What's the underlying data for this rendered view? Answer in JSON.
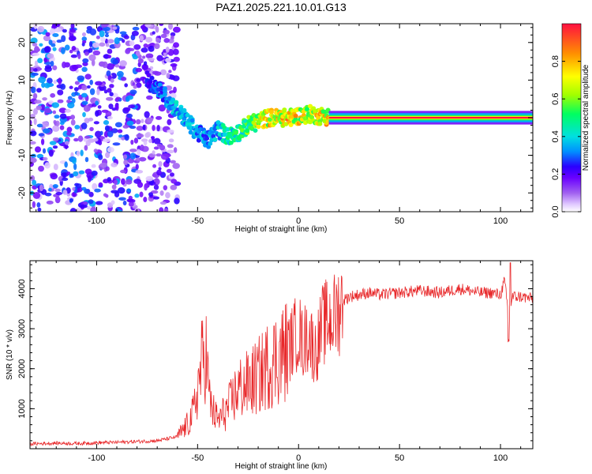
{
  "figure": {
    "title": "PAZ1.2025.221.10.01.G13"
  },
  "colorbar": {
    "label": "Normalized spectral amplitude",
    "ticks": [
      "0.0",
      "0.2",
      "0.4",
      "0.6",
      "0.8"
    ],
    "tick_values": [
      0.0,
      0.2,
      0.4,
      0.6,
      0.8
    ],
    "range": [
      0,
      1
    ],
    "colors": [
      "#ffffff",
      "#e0c8ff",
      "#a060f0",
      "#6a00ff",
      "#2a00ff",
      "#0090ff",
      "#00e0e0",
      "#00ff60",
      "#a0ff00",
      "#ffff00",
      "#ff9000",
      "#ff1040"
    ]
  },
  "chart_data": [
    {
      "type": "heatmap",
      "title": "",
      "xlabel": "Height of straight line (km)",
      "ylabel": "Frequency (Hz)",
      "xlim": [
        -133,
        116
      ],
      "ylim": [
        -25,
        25
      ],
      "xticks": [
        -100,
        -50,
        0,
        50,
        100
      ],
      "yticks": [
        -20,
        -10,
        0,
        10,
        20
      ],
      "ridge": {
        "x": [
          -75,
          -70,
          -65,
          -60,
          -55,
          -50,
          -45,
          -40,
          -35,
          -30,
          -25,
          -20,
          -15,
          -10,
          -5,
          0,
          5,
          10,
          20,
          30,
          50,
          80,
          100,
          116
        ],
        "y": [
          10,
          8,
          5,
          2,
          -1,
          -4,
          -6,
          -3,
          -5,
          -4,
          -2,
          -1,
          0,
          0,
          0,
          0.5,
          1,
          0.5,
          0,
          0,
          0,
          0,
          0,
          0
        ],
        "amplitude": [
          0.3,
          0.35,
          0.4,
          0.45,
          0.45,
          0.4,
          0.4,
          0.45,
          0.55,
          0.55,
          0.65,
          0.8,
          0.85,
          0.9,
          0.9,
          0.85,
          0.8,
          0.85,
          0.95,
          1,
          1,
          1,
          1,
          1
        ]
      },
      "scatter_region": {
        "xlim": [
          -133,
          -60
        ],
        "ylim": [
          -25,
          25
        ],
        "amplitude_max": 0.35
      }
    },
    {
      "type": "line",
      "title": "",
      "xlabel": "Height of straight line (km)",
      "ylabel": "SNR (10 * v/v)",
      "xlim": [
        -133,
        116
      ],
      "ylim": [
        0,
        4700
      ],
      "xticks": [
        -100,
        -50,
        0,
        50,
        100
      ],
      "yticks": [
        1000,
        2000,
        3000,
        4000
      ],
      "color": "#e8282a",
      "series": [
        {
          "x": [
            -133,
            -120,
            -110,
            -100,
            -90,
            -80,
            -70,
            -65,
            -60,
            -55,
            -52,
            -50,
            -48,
            -46,
            -44,
            -42,
            -40,
            -35,
            -30,
            -25,
            -20,
            -15,
            -10,
            -5,
            -2,
            0,
            2,
            5,
            8,
            10,
            12,
            15,
            18,
            20,
            22,
            25,
            30,
            35,
            40,
            50,
            60,
            70,
            80,
            90,
            95,
            100,
            102,
            104,
            106,
            110,
            116
          ],
          "y": [
            120,
            140,
            130,
            150,
            160,
            180,
            200,
            250,
            300,
            600,
            900,
            1500,
            2100,
            2500,
            1200,
            900,
            700,
            1000,
            1500,
            1600,
            1800,
            2100,
            2300,
            2500,
            2800,
            3000,
            2600,
            2900,
            2400,
            2700,
            3100,
            3200,
            3300,
            3500,
            3700,
            3800,
            3850,
            3900,
            3850,
            3900,
            3950,
            3900,
            4000,
            3900,
            3900,
            3850,
            4200,
            3300,
            3800,
            3800,
            3750
          ]
        }
      ]
    }
  ]
}
